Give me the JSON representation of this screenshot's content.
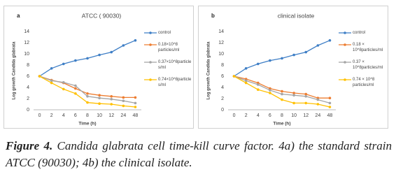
{
  "chart_data": [
    {
      "type": "line",
      "label": "a",
      "title": "ATCC ( 90030)",
      "x_label": "Time (h)",
      "y_label": "Log growth Candida glabrata",
      "categories": [
        "0",
        "2",
        "4",
        "6",
        "8",
        "10",
        "12",
        "24",
        "48"
      ],
      "ylim": [
        0,
        14
      ],
      "yticks": [
        0,
        2,
        4,
        6,
        8,
        10,
        12,
        14
      ],
      "grid": false,
      "series": [
        {
          "name": "control",
          "color": "#3f7fc6",
          "values": [
            6,
            7.4,
            8.2,
            8.8,
            9.2,
            9.8,
            10.3,
            11.5,
            12.4
          ]
        },
        {
          "name": "0.18×10^8 particles/ml",
          "color": "#ed7d31",
          "values": [
            6,
            5.3,
            4.8,
            3.8,
            2.9,
            2.6,
            2.4,
            2.2,
            2.2
          ]
        },
        {
          "name": "0.37×10^8particle s/ml",
          "color": "#a5a5a5",
          "values": [
            6,
            5.2,
            4.9,
            4.3,
            2.4,
            2.1,
            1.9,
            1.6,
            1.2
          ]
        },
        {
          "name": "0.74×10^8particle s/ml",
          "color": "#ffc000",
          "values": [
            6,
            4.8,
            3.7,
            2.9,
            1.3,
            1.1,
            1.0,
            0.7,
            0.5
          ]
        }
      ]
    },
    {
      "type": "line",
      "label": "b",
      "title": "clinical isolate",
      "x_label": "Time (h)",
      "y_label": "Log growth Candida glabrata",
      "categories": [
        "0",
        "2",
        "4",
        "6",
        "8",
        "10",
        "12",
        "24",
        "48"
      ],
      "ylim": [
        0,
        14
      ],
      "yticks": [
        0,
        2,
        4,
        6,
        8,
        10,
        12,
        14
      ],
      "grid": false,
      "series": [
        {
          "name": "control",
          "color": "#3f7fc6",
          "values": [
            6,
            7.4,
            8.2,
            8.8,
            9.2,
            9.8,
            10.3,
            11.5,
            12.4
          ]
        },
        {
          "name": "0.18 × 10^8particles/ml",
          "color": "#ed7d31",
          "values": [
            6,
            5.5,
            4.8,
            3.8,
            3.3,
            3.0,
            2.8,
            2.1,
            2.1
          ]
        },
        {
          "name": "0.37 × 10^8particles/ml",
          "color": "#a5a5a5",
          "values": [
            6,
            5.2,
            4.5,
            3.5,
            2.8,
            2.6,
            2.4,
            1.8,
            1.2
          ]
        },
        {
          "name": "0.74 × 10^8 particles/ml",
          "color": "#ffc000",
          "values": [
            6,
            4.8,
            3.6,
            3.0,
            1.8,
            1.2,
            1.2,
            1.0,
            0.5
          ]
        }
      ]
    }
  ],
  "caption": {
    "label": "Figure 4.",
    "text": "Candida glabrata cell time-kill curve factor. 4a) the standard strain ATCC (90030); 4b) the clinical isolate."
  }
}
